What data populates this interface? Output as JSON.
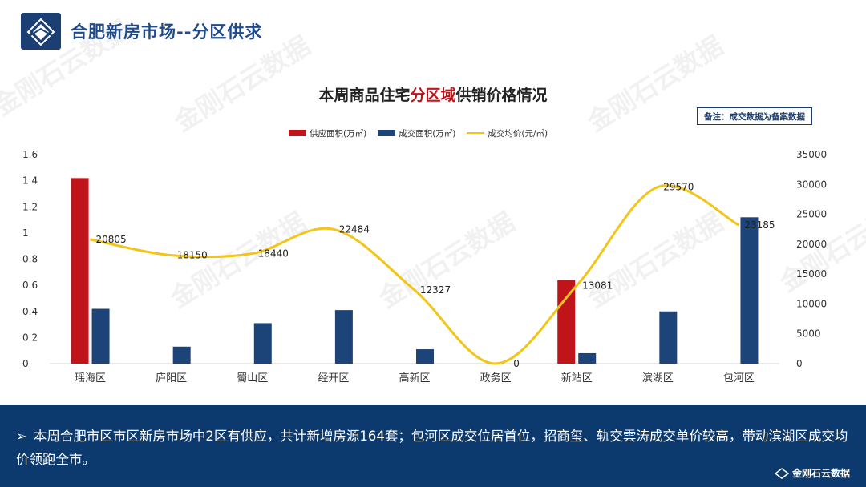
{
  "header": {
    "title": "合肥新房市场--分区供求"
  },
  "chart_title": {
    "pre": "本周商品住宅",
    "highlight": "分区域",
    "post": "供销价格情况"
  },
  "note": "备注：成交数据为备案数据",
  "watermark": "金刚石云数据",
  "colors": {
    "supply": "#c0141b",
    "deal": "#1c4478",
    "price": "#f2c518",
    "footer": "#0d3a6e"
  },
  "chart_data": {
    "type": "bar",
    "categories": [
      "瑶海区",
      "庐阳区",
      "蜀山区",
      "经开区",
      "高新区",
      "政务区",
      "新站区",
      "滨湖区",
      "包河区"
    ],
    "series": [
      {
        "name": "供应面积(万㎡)",
        "axis": "left",
        "kind": "bar",
        "values": [
          1.42,
          0,
          0,
          0,
          0,
          0,
          0.64,
          0,
          0
        ]
      },
      {
        "name": "成交面积(万㎡)",
        "axis": "left",
        "kind": "bar",
        "values": [
          0.42,
          0.13,
          0.31,
          0.41,
          0.11,
          0,
          0.08,
          0.4,
          1.12
        ]
      },
      {
        "name": "成交均价(元/㎡)",
        "axis": "right",
        "kind": "line",
        "values": [
          20805,
          18150,
          18440,
          22484,
          12327,
          0,
          13081,
          29570,
          23185
        ]
      }
    ],
    "price_labels": [
      "20805",
      "18150",
      "18440",
      "22484",
      "12327",
      "0",
      "13081",
      "29570",
      "23185"
    ],
    "y_left": {
      "ticks": [
        "0",
        "0.2",
        "0.4",
        "0.6",
        "0.8",
        "1",
        "1.2",
        "1.4",
        "1.6"
      ],
      "lim": [
        0,
        1.6
      ]
    },
    "y_right": {
      "ticks": [
        "0",
        "5000",
        "10000",
        "15000",
        "20000",
        "25000",
        "30000",
        "35000"
      ],
      "lim": [
        0,
        35000
      ]
    }
  },
  "footer": {
    "arrow": "➢",
    "text": "本周合肥市区市区新房市场中2区有供应，共计新增房源164套；包河区成交位居首位，招商玺、轨交雲涛成交单价较高，带动滨湖区成交均价领跑全市。",
    "brand": "金刚石云数据"
  }
}
